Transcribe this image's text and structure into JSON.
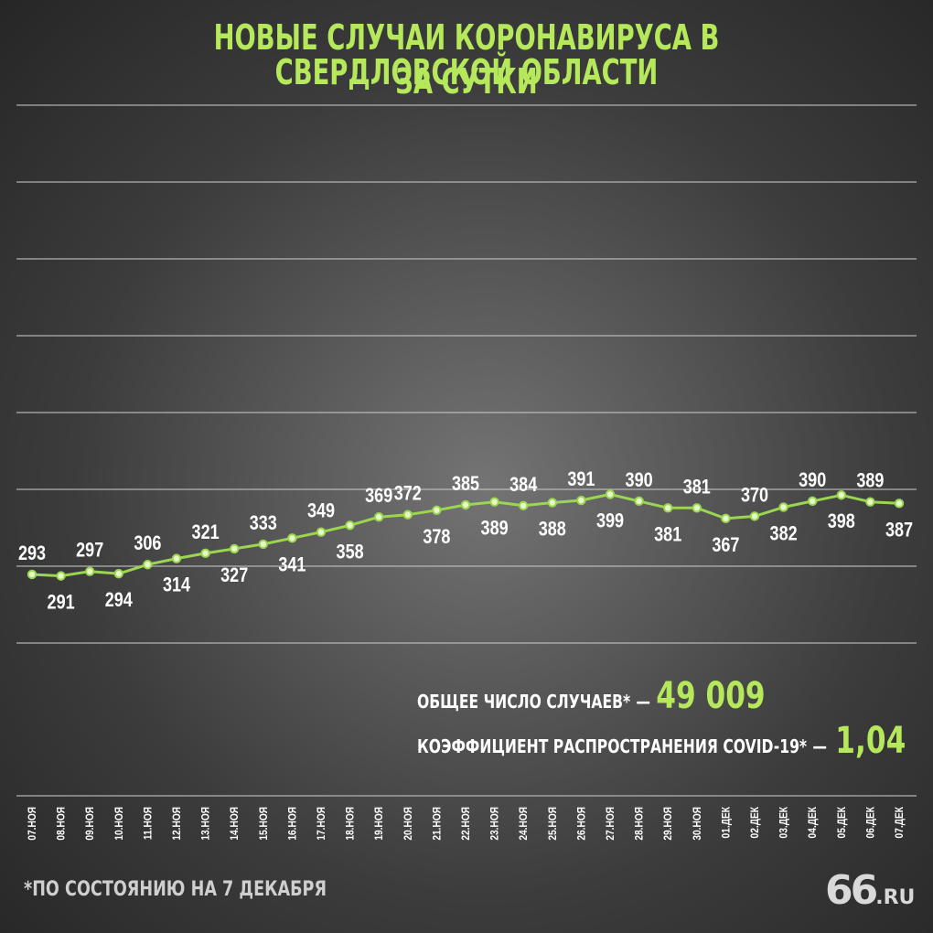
{
  "title_line1": "НОВЫЕ СЛУЧАИ КОРОНАВИРУСА В СВЕРДЛОВСКОЙ ОБЛАСТИ",
  "title_line2": "ЗА СУТКИ",
  "colors": {
    "accent": "#b5e85a",
    "line": "#9bd651",
    "grid": "#c8c8c8",
    "label": "#ffffff"
  },
  "chart_data": {
    "type": "line",
    "categories": [
      "07.НОЯ",
      "08.НОЯ",
      "09.НОЯ",
      "10.НОЯ",
      "11.НОЯ",
      "12.НОЯ",
      "13.НОЯ",
      "14.НОЯ",
      "15.НОЯ",
      "16.НОЯ",
      "17.НОЯ",
      "18.НОЯ",
      "19.НОЯ",
      "20.НОЯ",
      "21.НОЯ",
      "22.НОЯ",
      "23.НОЯ",
      "24.НОЯ",
      "25.НОЯ",
      "26.НОЯ",
      "27.НОЯ",
      "28.НОЯ",
      "29.НОЯ",
      "30.НОЯ",
      "01.ДЕК",
      "02.ДЕК",
      "03.ДЕК",
      "04.ДЕК",
      "05.ДЕК",
      "06.ДЕК",
      "07.ДЕК"
    ],
    "values": [
      293,
      291,
      297,
      294,
      306,
      314,
      321,
      327,
      333,
      341,
      349,
      358,
      369,
      372,
      378,
      385,
      389,
      384,
      388,
      391,
      399,
      390,
      381,
      381,
      367,
      370,
      382,
      390,
      398,
      389,
      387
    ],
    "label_position": [
      "above",
      "below",
      "above",
      "below",
      "above",
      "below",
      "above",
      "below",
      "above",
      "below",
      "above",
      "below",
      "above",
      "above",
      "below",
      "above",
      "below",
      "above",
      "below",
      "above",
      "below",
      "above",
      "below",
      "above",
      "below",
      "above",
      "below",
      "above",
      "below",
      "above",
      "below"
    ],
    "ylim": [
      0,
      457
    ],
    "grid": true,
    "title": "",
    "xlabel": "",
    "ylabel": ""
  },
  "stats": {
    "total_label": "ОБЩЕЕ ЧИСЛО СЛУЧАЕВ*",
    "dash": "—",
    "total_value": "49 009",
    "r_label": "КОЭФФИЦИЕНТ РАСПРОСТРАНЕНИЯ COVID-19*",
    "r_value": "1,04"
  },
  "footnote": "*ПО СОСТОЯНИЮ НА 7 ДЕКАБРЯ",
  "logo": {
    "number": "66",
    "domain": ".RU"
  }
}
